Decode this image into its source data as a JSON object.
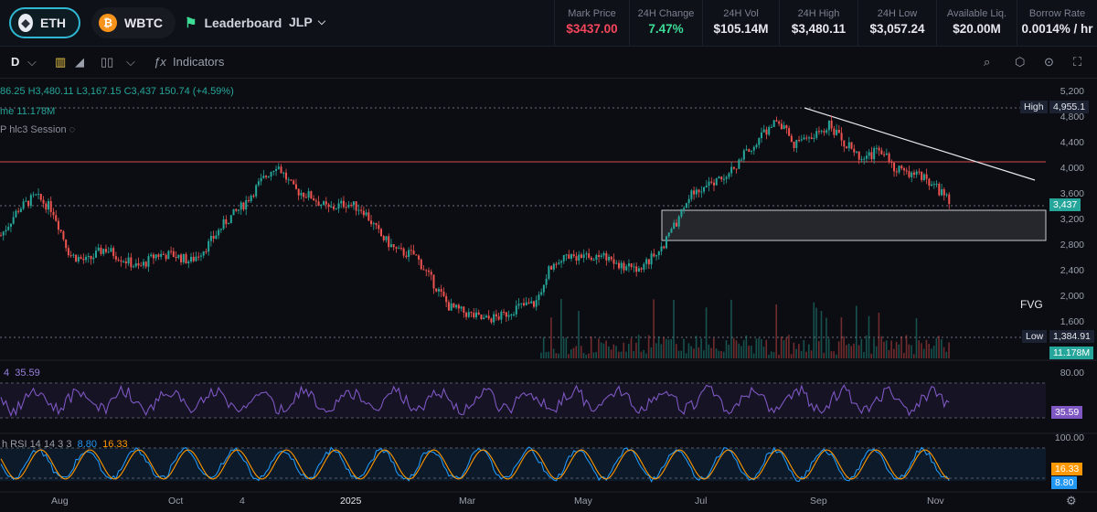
{
  "header": {
    "tabs": [
      {
        "label": "ETH",
        "icon": "ethereum-icon"
      },
      {
        "label": "WBTC",
        "icon": "bitcoin-icon"
      }
    ],
    "leaderboard_label": "Leaderboard",
    "pool_label": "JLP",
    "stats": [
      {
        "label": "Mark Price",
        "value": "$3437.00",
        "color": "#f6465d"
      },
      {
        "label": "24H Change",
        "value": "7.47%",
        "color": "#3ddc97"
      },
      {
        "label": "24H Vol",
        "value": "$105.14M"
      },
      {
        "label": "24H High",
        "value": "$3,480.11"
      },
      {
        "label": "24H Low",
        "value": "$3,057.24"
      },
      {
        "label": "Available Liq.",
        "value": "$20.00M"
      },
      {
        "label": "Borrow Rate",
        "value": "0.0014% / hr"
      }
    ]
  },
  "toolbar": {
    "interval": "D",
    "indicators_label": "Indicators"
  },
  "legend": {
    "ohlc": "86.25  H3,480.11  L3,167.15  C3,437  150.74 (+4.59%)",
    "volume": "me  11.178M",
    "session": "P hlc3 Session"
  },
  "price_axis": [
    "5,200",
    "4,800",
    "4,400",
    "4,000",
    "3,600",
    "3,200",
    "2,800",
    "2,400",
    "2,000",
    "1,600"
  ],
  "tags": {
    "high_label": "High",
    "high_value": "4,955.1",
    "low_label": "Low",
    "low_value": "1,384.91",
    "last_price": "3,437",
    "volume_value": "11.178M",
    "fvg_label": "FVG"
  },
  "rsi": {
    "legend_period": "4",
    "legend_value": "35.59",
    "axis_top": "80.00",
    "tag_value": "35.59"
  },
  "stoch_rsi": {
    "legend": "h RSI 14 14 3 3",
    "k": "8.80",
    "d": "16.33",
    "axis_top": "100.00"
  },
  "time_axis": [
    "Aug",
    "Oct",
    "4",
    "2025",
    "Mar",
    "May",
    "Jul",
    "Sep",
    "Nov"
  ],
  "chart_data": {
    "type": "candlestick",
    "symbol": "ETH",
    "interval": "D",
    "ylim": [
      1400,
      5200
    ],
    "high": 4955.1,
    "low": 1384.91,
    "last": 3437,
    "close_path": [
      2900,
      3300,
      3500,
      3300,
      2600,
      2500,
      2700,
      2550,
      2400,
      2600,
      2600,
      2500,
      2750,
      3100,
      3350,
      3700,
      4000,
      3600,
      3500,
      3300,
      3400,
      3300,
      2900,
      2650,
      2600,
      2200,
      1800,
      1700,
      1600,
      1650,
      1800,
      1850,
      2500,
      2600,
      2550,
      2600,
      2400,
      2400,
      2600,
      3000,
      3500,
      3700,
      3750,
      4100,
      4400,
      4700,
      4300,
      4400,
      4600,
      4300,
      4100,
      4200,
      3900,
      3850,
      3700,
      3437
    ],
    "colors": {
      "up": "#26a69a",
      "down": "#ef5350"
    }
  }
}
